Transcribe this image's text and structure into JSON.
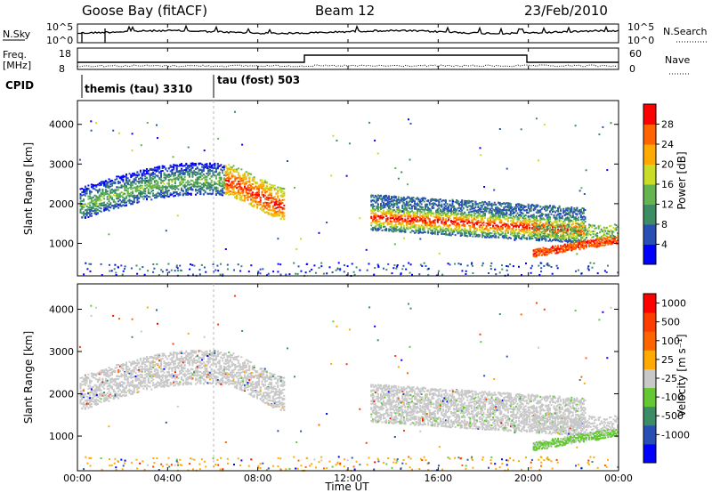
{
  "header": {
    "station": "Goose Bay (fitACF)",
    "beam": "Beam 12",
    "date": "23/Feb/2010"
  },
  "top_panels": {
    "nsky_label": "N.Sky",
    "nsky_ticks": [
      "10^5",
      "10^0"
    ],
    "nsearch_label": "N.Search",
    "nsearch_ticks": [
      "10^5",
      "10^0"
    ],
    "freq_label_1": "Freq.",
    "freq_label_2": "[MHz]",
    "freq_ticks": [
      "18",
      "8"
    ],
    "nave_label": "Nave",
    "nave_ticks": [
      "60",
      "0"
    ],
    "cpid_label": "CPID",
    "cpid_entries": [
      {
        "label": "themis (tau) 3310",
        "start_hour": 0
      },
      {
        "label": "tau (fost) 503",
        "start_hour": 6
      }
    ]
  },
  "chart_data": [
    {
      "type": "heatmap",
      "title": "",
      "xlabel": "",
      "ylabel": "Slant Range [km]",
      "x_range_hours": [
        0,
        24
      ],
      "ylim": [
        180,
        4600
      ],
      "yticks": [
        1000,
        2000,
        3000,
        4000
      ],
      "colorbar": {
        "label": "Power [dB]",
        "ticks": [
          "4",
          "8",
          "12",
          "16",
          "20",
          "24",
          "28"
        ],
        "colors": [
          "#0000ff",
          "#2850b4",
          "#3c8c64",
          "#64b450",
          "#c8dc28",
          "#ffaa00",
          "#ff6400",
          "#ff0000"
        ]
      },
      "echo_regions": [
        {
          "name": "early-arc",
          "hours": [
            0.1,
            9.2
          ],
          "range_km": [
            1700,
            3200
          ]
        },
        {
          "name": "midday-band",
          "hours": [
            13.0,
            22.5
          ],
          "range_km": [
            1300,
            2400
          ]
        },
        {
          "name": "late-band",
          "hours": [
            20.0,
            24.0
          ],
          "range_km": [
            700,
            1500
          ]
        },
        {
          "name": "near-range",
          "hours": [
            0,
            24
          ],
          "range_km": [
            180,
            500
          ]
        }
      ]
    },
    {
      "type": "heatmap",
      "title": "",
      "xlabel": "Time UT",
      "ylabel": "Slant Range [km]",
      "x_range_hours": [
        0,
        24
      ],
      "ylim": [
        180,
        4600
      ],
      "yticks": [
        1000,
        2000,
        3000,
        4000
      ],
      "xticks": [
        "00:00",
        "04:00",
        "08:00",
        "12:00",
        "16:00",
        "20:00",
        "00:00"
      ],
      "colorbar": {
        "label": "Velocity [m s⁻¹]",
        "ticks": [
          "1000",
          "500",
          "100",
          "25",
          "-25",
          "-100",
          "-500",
          "-1000"
        ],
        "colors": [
          "#0000ff",
          "#2850b4",
          "#3c8c64",
          "#64c832",
          "#c8c8c8",
          "#ffaa00",
          "#ff6400",
          "#ff3c00",
          "#ff0000"
        ]
      },
      "echo_regions": [
        {
          "name": "early-arc",
          "hours": [
            0.1,
            9.2
          ],
          "range_km": [
            1700,
            3200
          ]
        },
        {
          "name": "midday-band",
          "hours": [
            13.0,
            22.5
          ],
          "range_km": [
            1300,
            2400
          ]
        },
        {
          "name": "late-band",
          "hours": [
            20.0,
            24.0
          ],
          "range_km": [
            700,
            1500
          ]
        },
        {
          "name": "near-range",
          "hours": [
            0,
            24
          ],
          "range_km": [
            180,
            500
          ]
        }
      ]
    }
  ]
}
